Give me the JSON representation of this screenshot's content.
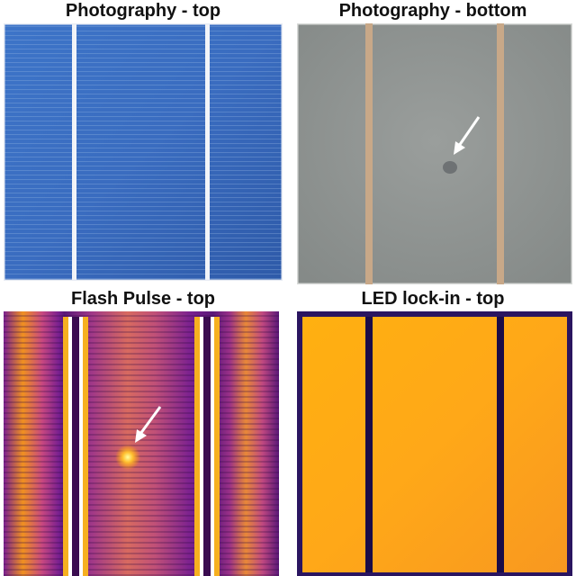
{
  "panels": [
    {
      "caption": "Photography - top"
    },
    {
      "caption": "Photography - bottom"
    },
    {
      "caption": "Flash Pulse - top"
    },
    {
      "caption": "LED lock-in - top"
    }
  ],
  "colors": {
    "cell_blue": "#3a6ec0",
    "cell_grey": "#8e9290",
    "thermal_hot": "#ffb000",
    "thermal_cold": "#5a1a78",
    "busbar_white": "#f4f4f4",
    "arrow_white": "#ffffff"
  },
  "icons": [
    "defect-arrow-icon",
    "defect-arrow-icon"
  ]
}
